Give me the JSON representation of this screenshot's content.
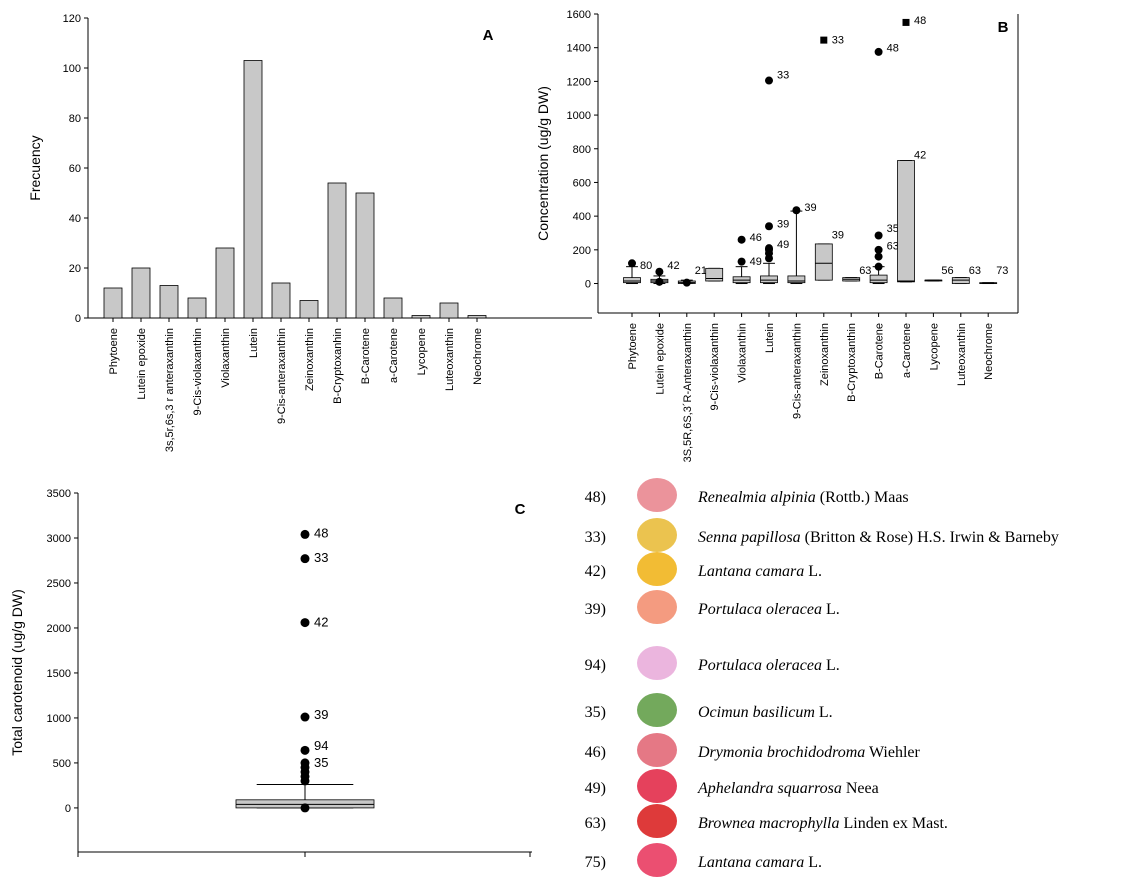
{
  "chart_data": [
    {
      "type": "bar",
      "panel": "A",
      "ylabel": "Frecuency",
      "categories": [
        "Phytoene",
        "Lutein epoxide",
        "3s,5r,6s,3 r anteraxanthin",
        "9-Cis-violaxanthin",
        "Violaxanthin",
        "Lutein",
        "9-Cis-anteraxanthin",
        "Zeinoxanthin",
        "B-Cryptoxanhin",
        "B-Carotene",
        "a-Carotene",
        "Lycopene",
        "Luteoxanthin",
        "Neochrome"
      ],
      "values": [
        12,
        20,
        13,
        8,
        28,
        103,
        14,
        7,
        54,
        50,
        8,
        1,
        6,
        1
      ],
      "color": "#c8c8c8",
      "ylim": [
        0,
        120
      ],
      "yticks": [
        0,
        20,
        40,
        60,
        80,
        100,
        120
      ]
    },
    {
      "type": "box",
      "panel": "B",
      "ylabel": "Concentration (ug/g DW)",
      "categories": [
        "Phytoene",
        "Lutein epoxide",
        "3S,5R,6S,3´R-Anteraxanthin",
        "9-Cis-violaxanthin",
        "Violaxanthin",
        "Lutein",
        "9-Cis-anteraxanthin",
        "Zeinoxanthin",
        "B-Cryptoxanthin",
        "B-Carotene",
        "a-Carotene",
        "Lycopene",
        "Luteoxanthin",
        "Neochrome"
      ],
      "boxes": [
        {
          "q1": 5,
          "median": 15,
          "q3": 35,
          "whislo": 0,
          "whishi": 100,
          "outliers": [
            120
          ],
          "labels": [
            {
              "text": "80",
              "y": 110
            }
          ]
        },
        {
          "q1": 5,
          "median": 15,
          "q3": 25,
          "whislo": 0,
          "whishi": 45,
          "outliers": [
            70,
            10
          ],
          "labels": [
            {
              "text": "42",
              "y": 110
            }
          ]
        },
        {
          "q1": 0,
          "median": 5,
          "q3": 15,
          "whislo": 0,
          "whishi": 20,
          "outliers": [
            5
          ],
          "labels": [
            {
              "text": "21",
              "y": 80
            }
          ]
        },
        {
          "q1": 15,
          "median": 30,
          "q3": 90,
          "whislo": 15,
          "whishi": 90,
          "outliers": [],
          "labels": []
        },
        {
          "q1": 5,
          "median": 20,
          "q3": 40,
          "whislo": 0,
          "whishi": 100,
          "outliers": [
            130,
            260
          ],
          "labels": [
            {
              "text": "46",
              "y": 275
            },
            {
              "text": "49",
              "y": 135
            }
          ]
        },
        {
          "q1": 5,
          "median": 20,
          "q3": 45,
          "whislo": 0,
          "whishi": 120,
          "outliers": [
            150,
            180,
            200,
            210,
            340,
            1205
          ],
          "labels": [
            {
              "text": "33",
              "y": 1240
            },
            {
              "text": "39",
              "y": 355
            },
            {
              "text": "49",
              "y": 235
            }
          ]
        },
        {
          "q1": 5,
          "median": 15,
          "q3": 45,
          "whislo": 0,
          "whishi": 430,
          "outliers": [
            435
          ],
          "labels": [
            {
              "text": "39",
              "y": 455
            }
          ]
        },
        {
          "q1": 20,
          "median": 120,
          "q3": 235,
          "whislo": 20,
          "whishi": 235,
          "outliers": [
            1445
          ],
          "marker": "square",
          "labels": [
            {
              "text": "33",
              "y": 1450
            },
            {
              "text": "39",
              "y": 290
            }
          ]
        },
        {
          "q1": 15,
          "median": 25,
          "q3": 35,
          "whislo": 15,
          "whishi": 35,
          "outliers": [],
          "labels": [
            {
              "text": "63",
              "y": 80
            }
          ]
        },
        {
          "q1": 5,
          "median": 20,
          "q3": 50,
          "whislo": 0,
          "whishi": 100,
          "outliers": [
            100,
            160,
            200,
            285,
            1375
          ],
          "labels": [
            {
              "text": "48",
              "y": 1400
            },
            {
              "text": "35",
              "y": 330
            },
            {
              "text": "63",
              "y": 225
            }
          ]
        },
        {
          "q1": 10,
          "median": 15,
          "q3": 730,
          "whislo": 10,
          "whishi": 730,
          "outliers": [
            1550
          ],
          "marker": "square",
          "labels": [
            {
              "text": "48",
              "y": 1565
            },
            {
              "text": "42",
              "y": 765
            }
          ]
        },
        {
          "q1": 15,
          "median": 20,
          "q3": 20,
          "whislo": 15,
          "whishi": 20,
          "outliers": [],
          "labels": [
            {
              "text": "56",
              "y": 80
            }
          ]
        },
        {
          "q1": 0,
          "median": 20,
          "q3": 35,
          "whislo": 0,
          "whishi": 35,
          "outliers": [],
          "labels": [
            {
              "text": "63",
              "y": 80
            }
          ]
        },
        {
          "q1": 0,
          "median": 2,
          "q3": 5,
          "whislo": 0,
          "whishi": 5,
          "outliers": [],
          "labels": [
            {
              "text": "73",
              "y": 80
            }
          ]
        }
      ],
      "color": "#c8c8c8",
      "ylim": [
        -175,
        1600
      ],
      "yticks": [
        0,
        200,
        400,
        600,
        800,
        1000,
        1200,
        1400,
        1600
      ]
    },
    {
      "type": "box",
      "panel": "C",
      "ylabel": "Total carotenoid (ug/g DW)",
      "boxes": [
        {
          "q1": 0,
          "median": 40,
          "q3": 90,
          "whislo": 0,
          "whishi": 260,
          "outliers": [
            0,
            300,
            350,
            400,
            450,
            500,
            640,
            1010,
            2060,
            2770,
            3040
          ],
          "labels": [
            {
              "text": "48",
              "y": 3050
            },
            {
              "text": "33",
              "y": 2780
            },
            {
              "text": "42",
              "y": 2060
            },
            {
              "text": "39",
              "y": 1030
            },
            {
              "text": "94",
              "y": 690
            },
            {
              "text": "35",
              "y": 500
            }
          ]
        }
      ],
      "color": "#c8c8c8",
      "ylim": [
        -490,
        3500
      ],
      "yticks": [
        0,
        500,
        1000,
        1500,
        2000,
        2500,
        3000,
        3500
      ]
    }
  ],
  "species_list": [
    {
      "number": "48)",
      "species": "Renealmia alpinia",
      "authority": "(Rottb.) Maas"
    },
    {
      "number": "33)",
      "species": "Senna papillosa",
      "authority": "(Britton & Rose) H.S. Irwin & Barneby"
    },
    {
      "number": "42)",
      "species": "Lantana camara",
      "authority": "L."
    },
    {
      "number": "39)",
      "species": "Portulaca oleracea",
      "authority": "L."
    },
    {
      "number": "94)",
      "species": "Portulaca oleracea",
      "authority": "L."
    },
    {
      "number": "35)",
      "species": "Ocimun basilicum",
      "authority": "L."
    },
    {
      "number": "46)",
      "species": "Drymonia brochidodroma",
      "authority": "Wiehler"
    },
    {
      "number": "49)",
      "species": "Aphelandra squarrosa",
      "authority": "Neea"
    },
    {
      "number": "63)",
      "species": "Brownea macrophylla",
      "authority": "Linden ex Mast."
    },
    {
      "number": "75)",
      "species": "Lantana camara",
      "authority": "L."
    }
  ]
}
